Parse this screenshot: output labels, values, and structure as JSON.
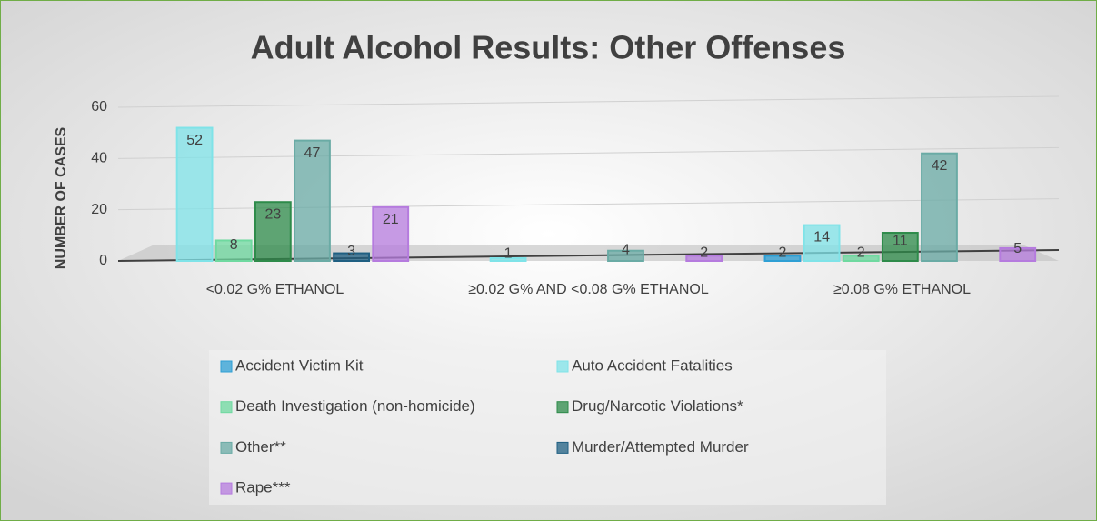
{
  "chart_data": {
    "type": "bar",
    "title": "Adult Alcohol Results: Other Offenses",
    "y_label": "NUMBER OF CASES",
    "categories": [
      "<0.02 G% ETHANOL",
      "≥0.02 G%  AND <0.08 G% ETHANOL",
      "≥0.08 G% ETHANOL"
    ],
    "series": [
      {
        "name": "Accident Victim Kit",
        "color": "#2e9fd4",
        "values": [
          null,
          null,
          2
        ]
      },
      {
        "name": "Auto Accident Fatalities",
        "color": "#7fe3e8",
        "values": [
          52,
          1,
          14
        ]
      },
      {
        "name": "Death Investigation (non-homicide)",
        "color": "#6fd9a0",
        "values": [
          8,
          null,
          2
        ]
      },
      {
        "name": "Drug/Narcotic Violations*",
        "color": "#2e8b4a",
        "values": [
          23,
          null,
          11
        ]
      },
      {
        "name": "Other**",
        "color": "#6aaba5",
        "values": [
          47,
          4,
          42
        ]
      },
      {
        "name": "Murder/Attempted Murder",
        "color": "#1f5f82",
        "values": [
          3,
          null,
          null
        ]
      },
      {
        "name": "Rape***",
        "color": "#b57bde",
        "values": [
          21,
          2,
          5
        ]
      }
    ],
    "ylim": [
      0,
      60
    ],
    "yticks": [
      0,
      20,
      40,
      60
    ],
    "grid": true
  }
}
